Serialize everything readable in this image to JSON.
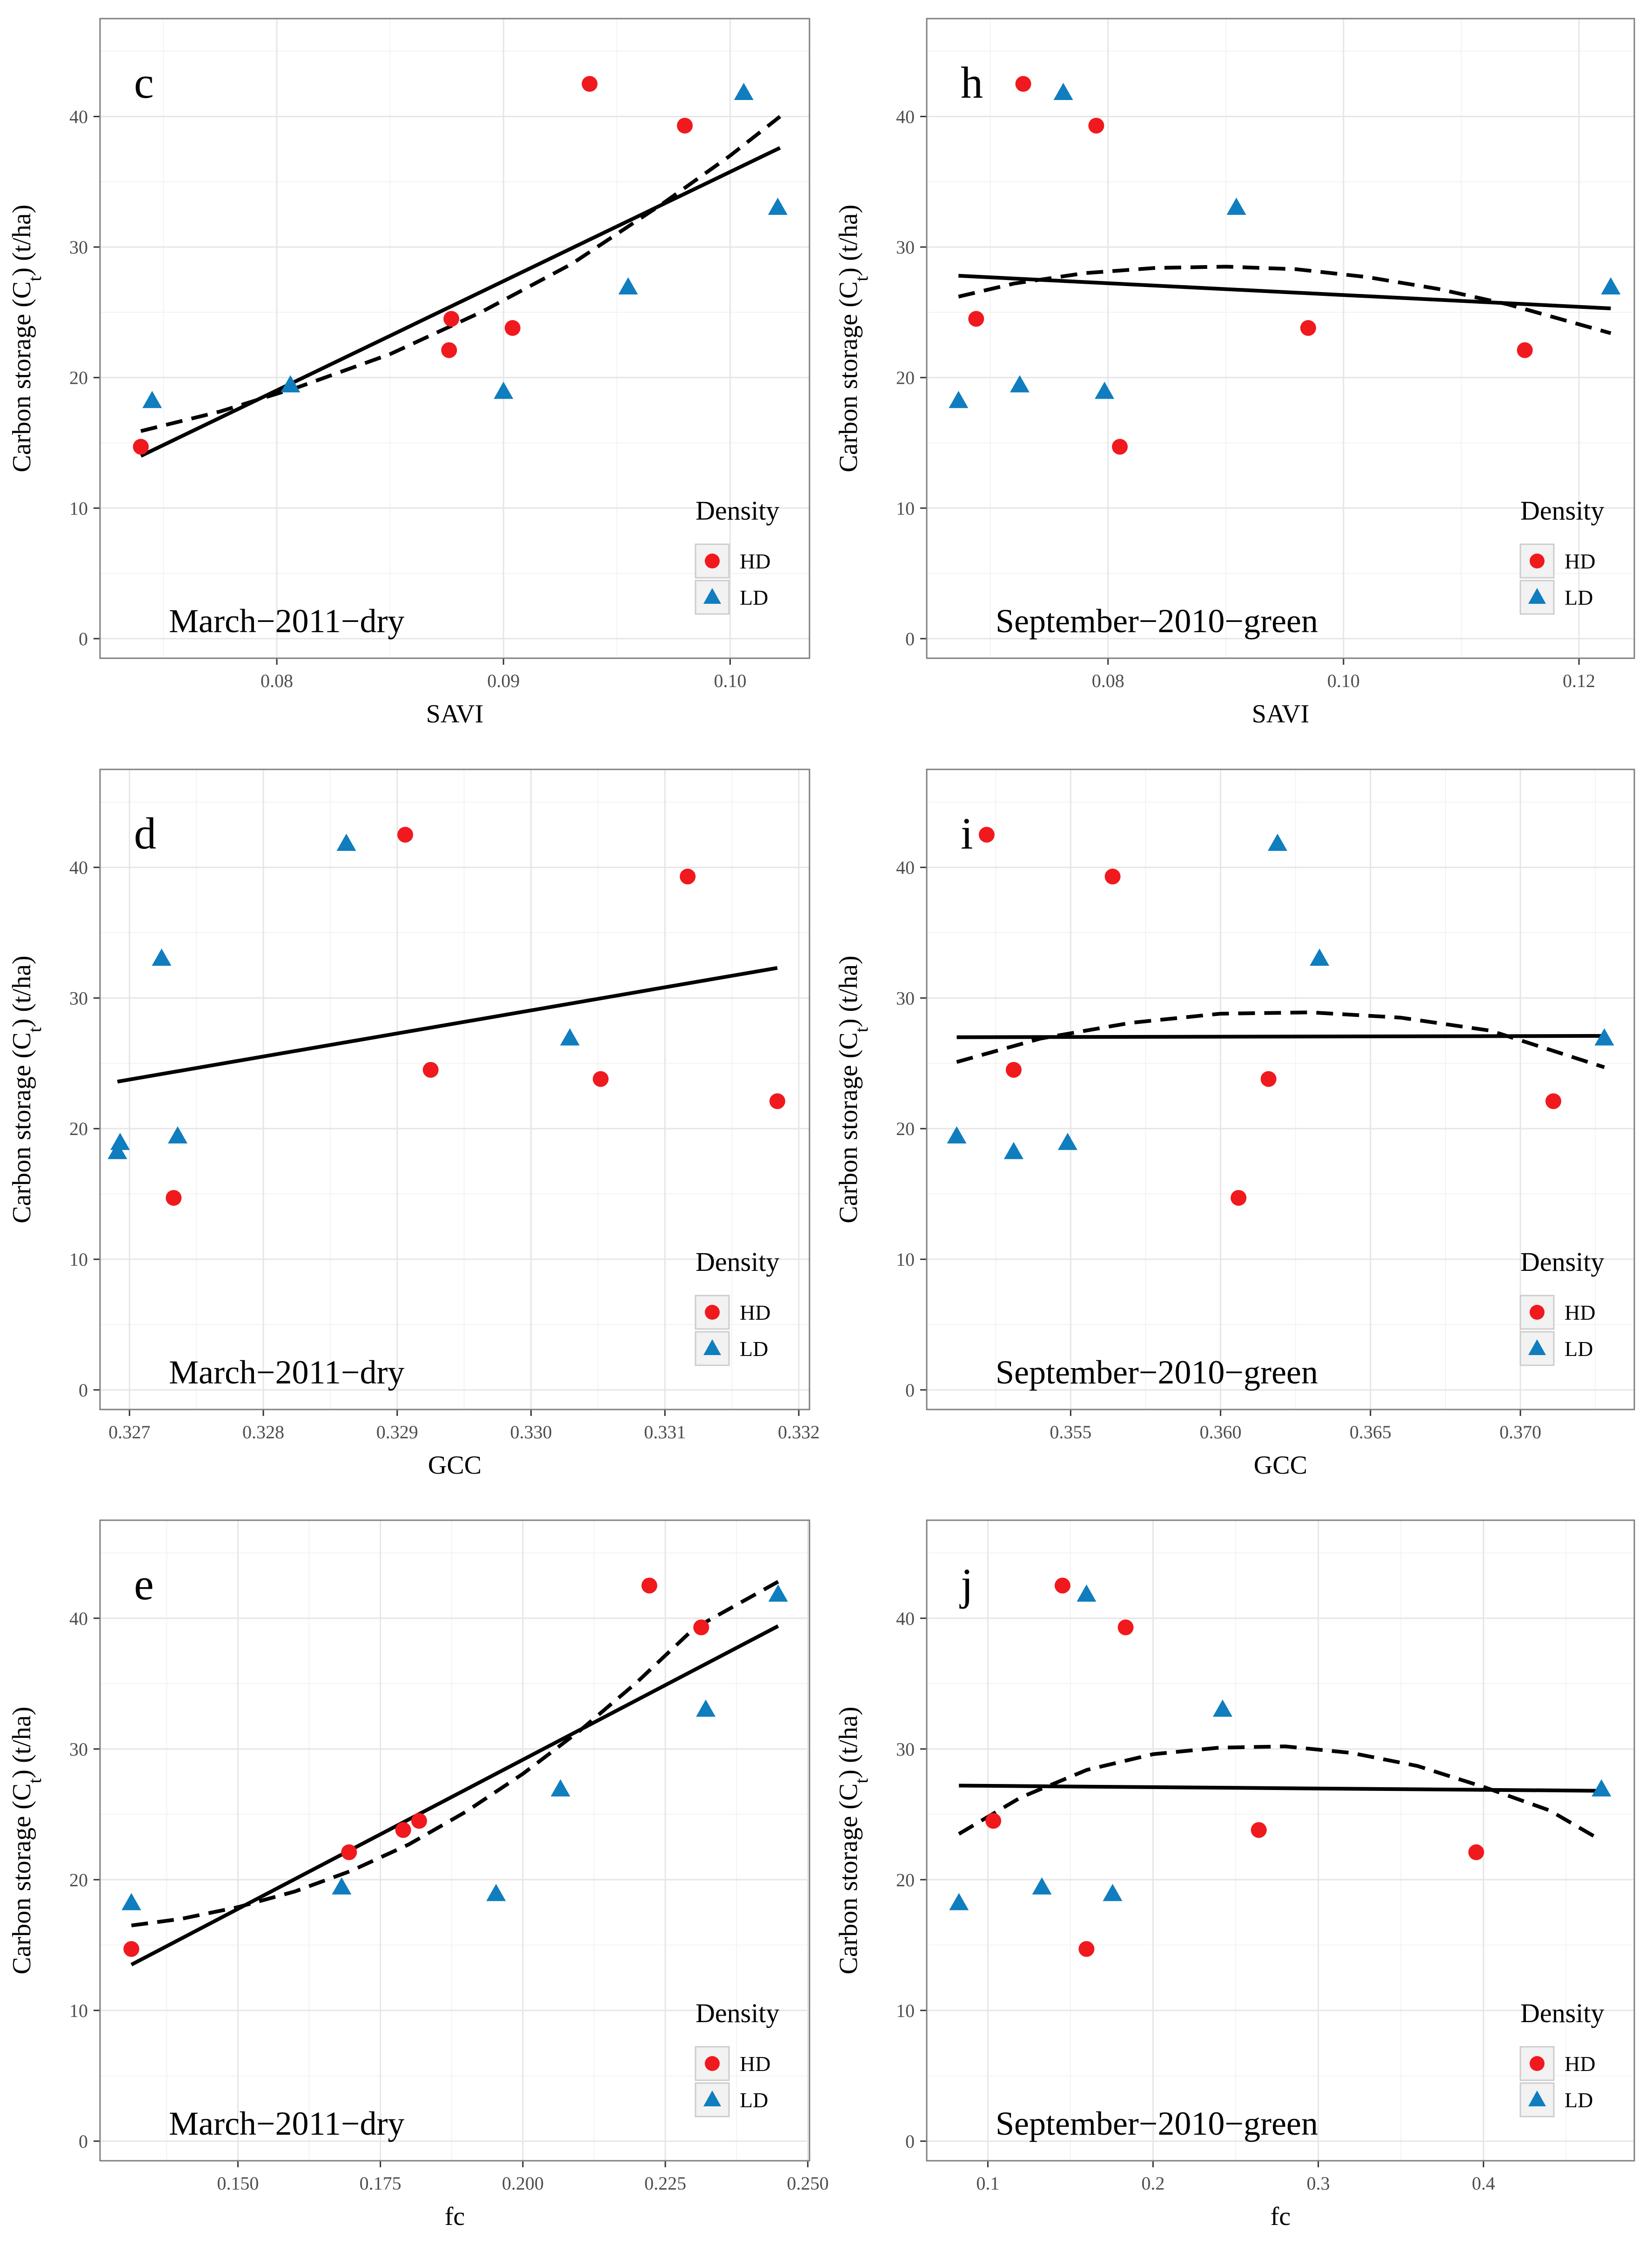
{
  "colors": {
    "HD": "#f0191e",
    "LD": "#0f7dbe",
    "panel_bg": "#ffffff",
    "grid_major": "#e6e6e6",
    "grid_minor": "#f3f3f3",
    "frame": "#7f7f7f",
    "fit": "#000000"
  },
  "legend": {
    "title": "Density",
    "items": [
      "HD",
      "LD"
    ]
  },
  "chart_data": [
    {
      "id": "c",
      "type": "scatter",
      "annotation": "March−2011−dry",
      "xlabel": "SAVI",
      "ylabel": "Carbon storage (C_t) (t/ha)",
      "xlim": [
        0.0722,
        0.1035
      ],
      "ylim": [
        -1.5,
        47.5
      ],
      "xticks": [
        0.08,
        0.09,
        0.1
      ],
      "xtick_labels": [
        "0.08",
        "0.09",
        "0.10"
      ],
      "yticks": [
        0,
        10,
        20,
        30,
        40
      ],
      "ytick_labels": [
        "0",
        "10",
        "20",
        "30",
        "40"
      ],
      "series": [
        {
          "name": "HD",
          "marker": "circle",
          "points": [
            [
              0.074,
              14.7
            ],
            [
              0.0877,
              24.5
            ],
            [
              0.0876,
              22.1
            ],
            [
              0.0904,
              23.8
            ],
            [
              0.0938,
              42.5
            ],
            [
              0.098,
              39.3
            ]
          ]
        },
        {
          "name": "LD",
          "marker": "triangle",
          "points": [
            [
              0.0745,
              18.2
            ],
            [
              0.0806,
              19.4
            ],
            [
              0.09,
              18.9
            ],
            [
              0.0955,
              26.9
            ],
            [
              0.1006,
              41.8
            ],
            [
              0.1021,
              33.0
            ]
          ]
        }
      ],
      "linear_fit": [
        [
          0.074,
          14.0
        ],
        [
          0.1022,
          37.6
        ]
      ],
      "quadratic_fit": [
        [
          0.074,
          15.9
        ],
        [
          0.0775,
          17.4
        ],
        [
          0.081,
          19.3
        ],
        [
          0.085,
          21.8
        ],
        [
          0.089,
          25.0
        ],
        [
          0.093,
          28.7
        ],
        [
          0.097,
          33.3
        ],
        [
          0.1,
          37.0
        ],
        [
          0.1022,
          40.0
        ]
      ]
    },
    {
      "id": "h",
      "type": "scatter",
      "annotation": "September−2010−green",
      "xlabel": "SAVI",
      "ylabel": "Carbon storage (C_t) (t/ha)",
      "xlim": [
        0.0646,
        0.1247
      ],
      "ylim": [
        -1.5,
        47.5
      ],
      "xticks": [
        0.08,
        0.1,
        0.12
      ],
      "xtick_labels": [
        "0.08",
        "0.10",
        "0.12"
      ],
      "yticks": [
        0,
        10,
        20,
        30,
        40
      ],
      "ytick_labels": [
        "0",
        "10",
        "20",
        "30",
        "40"
      ],
      "series": [
        {
          "name": "HD",
          "marker": "circle",
          "points": [
            [
              0.0688,
              24.5
            ],
            [
              0.0728,
              42.5
            ],
            [
              0.079,
              39.3
            ],
            [
              0.081,
              14.7
            ],
            [
              0.097,
              23.8
            ],
            [
              0.1154,
              22.1
            ]
          ]
        },
        {
          "name": "LD",
          "marker": "triangle",
          "points": [
            [
              0.0673,
              18.2
            ],
            [
              0.0725,
              19.4
            ],
            [
              0.0762,
              41.8
            ],
            [
              0.0797,
              18.9
            ],
            [
              0.0909,
              33.0
            ],
            [
              0.1227,
              26.9
            ]
          ]
        }
      ],
      "linear_fit": [
        [
          0.0673,
          27.8
        ],
        [
          0.1227,
          25.3
        ]
      ],
      "quadratic_fit": [
        [
          0.0673,
          26.2
        ],
        [
          0.072,
          27.2
        ],
        [
          0.078,
          28.0
        ],
        [
          0.084,
          28.4
        ],
        [
          0.09,
          28.5
        ],
        [
          0.096,
          28.3
        ],
        [
          0.102,
          27.7
        ],
        [
          0.108,
          26.8
        ],
        [
          0.114,
          25.6
        ],
        [
          0.1227,
          23.4
        ]
      ]
    },
    {
      "id": "d",
      "type": "scatter",
      "annotation": "March−2011−dry",
      "xlabel": "GCC",
      "ylabel": "Carbon storage (C_t) (t/ha)",
      "xlim": [
        0.32678,
        0.33208
      ],
      "ylim": [
        -1.5,
        47.5
      ],
      "xticks": [
        0.327,
        0.328,
        0.329,
        0.33,
        0.331,
        0.332
      ],
      "xtick_labels": [
        "0.327",
        "0.328",
        "0.329",
        "0.330",
        "0.331",
        "0.332"
      ],
      "yticks": [
        0,
        10,
        20,
        30,
        40
      ],
      "ytick_labels": [
        "0",
        "10",
        "20",
        "30",
        "40"
      ],
      "series": [
        {
          "name": "HD",
          "marker": "circle",
          "points": [
            [
              0.32733,
              14.7
            ],
            [
              0.32906,
              42.5
            ],
            [
              0.32925,
              24.5
            ],
            [
              0.33052,
              23.8
            ],
            [
              0.33117,
              39.3
            ],
            [
              0.33184,
              22.1
            ]
          ]
        },
        {
          "name": "LD",
          "marker": "triangle",
          "points": [
            [
              0.32691,
              18.2
            ],
            [
              0.32693,
              18.9
            ],
            [
              0.32724,
              33.0
            ],
            [
              0.32736,
              19.4
            ],
            [
              0.32862,
              41.8
            ],
            [
              0.33029,
              26.9
            ]
          ]
        }
      ],
      "linear_fit": [
        [
          0.32691,
          23.6
        ],
        [
          0.33184,
          32.3
        ]
      ]
    },
    {
      "id": "i",
      "type": "scatter",
      "annotation": "September−2010−green",
      "xlabel": "GCC",
      "ylabel": "Carbon storage (C_t) (t/ha)",
      "xlim": [
        0.3502,
        0.3738
      ],
      "ylim": [
        -1.5,
        47.5
      ],
      "xticks": [
        0.355,
        0.36,
        0.365,
        0.37
      ],
      "xtick_labels": [
        "0.355",
        "0.360",
        "0.365",
        "0.370"
      ],
      "yticks": [
        0,
        10,
        20,
        30,
        40
      ],
      "ytick_labels": [
        "0",
        "10",
        "20",
        "30",
        "40"
      ],
      "series": [
        {
          "name": "HD",
          "marker": "circle",
          "points": [
            [
              0.3522,
              42.5
            ],
            [
              0.3531,
              24.5
            ],
            [
              0.3564,
              39.3
            ],
            [
              0.3606,
              14.7
            ],
            [
              0.3616,
              23.8
            ],
            [
              0.3711,
              22.1
            ]
          ]
        },
        {
          "name": "LD",
          "marker": "triangle",
          "points": [
            [
              0.3512,
              19.4
            ],
            [
              0.3531,
              18.2
            ],
            [
              0.3549,
              18.9
            ],
            [
              0.3619,
              41.8
            ],
            [
              0.3633,
              33.0
            ],
            [
              0.3728,
              26.9
            ]
          ]
        }
      ],
      "linear_fit": [
        [
          0.3512,
          27.0
        ],
        [
          0.3728,
          27.1
        ]
      ],
      "quadratic_fit": [
        [
          0.3512,
          25.1
        ],
        [
          0.354,
          26.9
        ],
        [
          0.357,
          28.1
        ],
        [
          0.36,
          28.8
        ],
        [
          0.363,
          28.9
        ],
        [
          0.366,
          28.5
        ],
        [
          0.369,
          27.5
        ],
        [
          0.3728,
          24.7
        ]
      ]
    },
    {
      "id": "e",
      "type": "scatter",
      "annotation": "March−2011−dry",
      "xlabel": "fc",
      "ylabel": "Carbon storage (C_t) (t/ha)",
      "xlim": [
        0.1258,
        0.2503
      ],
      "ylim": [
        -1.5,
        47.5
      ],
      "xticks": [
        0.15,
        0.175,
        0.2,
        0.225,
        0.25
      ],
      "xtick_labels": [
        "0.150",
        "0.175",
        "0.200",
        "0.225",
        "0.250"
      ],
      "yticks": [
        0,
        10,
        20,
        30,
        40
      ],
      "ytick_labels": [
        "0",
        "10",
        "20",
        "30",
        "40"
      ],
      "series": [
        {
          "name": "HD",
          "marker": "circle",
          "points": [
            [
              0.1313,
              14.7
            ],
            [
              0.1695,
              22.1
            ],
            [
              0.179,
              23.8
            ],
            [
              0.1818,
              24.5
            ],
            [
              0.2222,
              42.5
            ],
            [
              0.2313,
              39.3
            ]
          ]
        },
        {
          "name": "LD",
          "marker": "triangle",
          "points": [
            [
              0.1313,
              18.2
            ],
            [
              0.1682,
              19.4
            ],
            [
              0.1953,
              18.9
            ],
            [
              0.2066,
              26.9
            ],
            [
              0.2321,
              33.0
            ],
            [
              0.2448,
              41.8
            ]
          ]
        }
      ],
      "linear_fit": [
        [
          0.1313,
          13.5
        ],
        [
          0.2448,
          39.4
        ]
      ],
      "quadratic_fit": [
        [
          0.1313,
          16.5
        ],
        [
          0.14,
          17.0
        ],
        [
          0.15,
          17.9
        ],
        [
          0.16,
          19.1
        ],
        [
          0.17,
          20.7
        ],
        [
          0.18,
          22.7
        ],
        [
          0.19,
          25.2
        ],
        [
          0.2,
          28.1
        ],
        [
          0.21,
          31.4
        ],
        [
          0.22,
          35.1
        ],
        [
          0.23,
          39.2
        ],
        [
          0.2448,
          42.8
        ]
      ]
    },
    {
      "id": "j",
      "type": "scatter",
      "annotation": "September−2010−green",
      "xlabel": "fc",
      "ylabel": "Carbon storage (C_t) (t/ha)",
      "xlim": [
        0.063,
        0.4913
      ],
      "ylim": [
        -1.5,
        47.5
      ],
      "xticks": [
        0.1,
        0.2,
        0.3,
        0.4
      ],
      "xtick_labels": [
        "0.1",
        "0.2",
        "0.3",
        "0.4"
      ],
      "yticks": [
        0,
        10,
        20,
        30,
        40
      ],
      "ytick_labels": [
        "0",
        "10",
        "20",
        "30",
        "40"
      ],
      "series": [
        {
          "name": "HD",
          "marker": "circle",
          "points": [
            [
              0.1033,
              24.5
            ],
            [
              0.1452,
              42.5
            ],
            [
              0.1597,
              14.7
            ],
            [
              0.1834,
              39.3
            ],
            [
              0.264,
              23.8
            ],
            [
              0.3956,
              22.1
            ]
          ]
        },
        {
          "name": "LD",
          "marker": "triangle",
          "points": [
            [
              0.0825,
              18.2
            ],
            [
              0.1327,
              19.4
            ],
            [
              0.1597,
              41.8
            ],
            [
              0.1755,
              18.9
            ],
            [
              0.2421,
              33.0
            ],
            [
              0.4714,
              26.9
            ]
          ]
        }
      ],
      "linear_fit": [
        [
          0.0825,
          27.2
        ],
        [
          0.4714,
          26.8
        ]
      ],
      "quadratic_fit": [
        [
          0.0825,
          23.5
        ],
        [
          0.12,
          26.3
        ],
        [
          0.16,
          28.4
        ],
        [
          0.2,
          29.6
        ],
        [
          0.24,
          30.1
        ],
        [
          0.28,
          30.2
        ],
        [
          0.32,
          29.7
        ],
        [
          0.36,
          28.7
        ],
        [
          0.4,
          27.1
        ],
        [
          0.44,
          25.3
        ],
        [
          0.4714,
          23.0
        ]
      ]
    }
  ]
}
